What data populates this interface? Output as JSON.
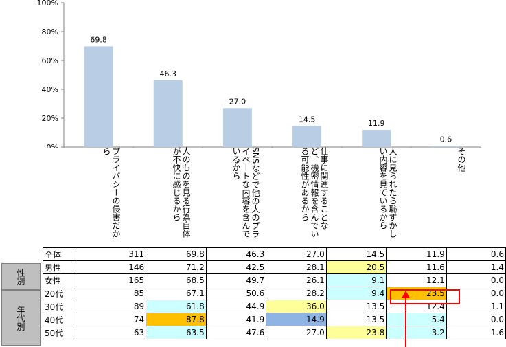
{
  "chart_data": {
    "type": "bar",
    "categories": [
      "プライバシーの侵害だから",
      "人のものを見る行為自体が不快に感じるから",
      "SNSなどで他の人のプライベートな内容を含んでいるから",
      "仕事に関連することなど、機密情報を含んでいる可能性があるから",
      "人に見られたら恥ずかしい内容を見ているから",
      "その他"
    ],
    "values": [
      69.8,
      46.3,
      27.0,
      14.5,
      11.9,
      0.6
    ],
    "value_labels": [
      "69.8",
      "46.3",
      "27.0",
      "14.5",
      "11.9",
      "0.6"
    ],
    "ylim": [
      0,
      100
    ],
    "yticks": [
      "0%",
      "20%",
      "40%",
      "60%",
      "80%",
      "100%"
    ],
    "bar_color": "#b9cde5",
    "grid": false
  },
  "table": {
    "groups": [
      {
        "label": "性別"
      },
      {
        "label": "年代別"
      }
    ],
    "rows": [
      {
        "label": "全体",
        "n": "311",
        "values": [
          "69.8",
          "46.3",
          "27.0",
          "14.5",
          "11.9",
          "0.6"
        ],
        "hl": [
          "",
          "",
          "",
          "",
          "",
          ""
        ]
      },
      {
        "label": "男性",
        "n": "146",
        "values": [
          "71.2",
          "42.5",
          "28.1",
          "20.5",
          "11.6",
          "1.4"
        ],
        "hl": [
          "",
          "",
          "",
          "y",
          "",
          ""
        ]
      },
      {
        "label": "女性",
        "n": "165",
        "values": [
          "68.5",
          "49.7",
          "26.1",
          "9.1",
          "12.1",
          "0.0"
        ],
        "hl": [
          "",
          "",
          "",
          "c",
          "",
          ""
        ]
      },
      {
        "label": "20代",
        "n": "85",
        "values": [
          "67.1",
          "50.6",
          "28.2",
          "9.4",
          "23.5",
          "0.0"
        ],
        "hl": [
          "",
          "",
          "",
          "c",
          "o",
          ""
        ]
      },
      {
        "label": "30代",
        "n": "89",
        "values": [
          "61.8",
          "44.9",
          "36.0",
          "13.5",
          "12.4",
          "1.1"
        ],
        "hl": [
          "c",
          "",
          "y",
          "",
          "",
          ""
        ]
      },
      {
        "label": "40代",
        "n": "74",
        "values": [
          "87.8",
          "41.9",
          "14.9",
          "13.5",
          "5.4",
          "0.0"
        ],
        "hl": [
          "o",
          "",
          "b",
          "",
          "c",
          ""
        ]
      },
      {
        "label": "50代",
        "n": "63",
        "values": [
          "63.5",
          "47.6",
          "27.0",
          "23.8",
          "3.2",
          "1.6"
        ],
        "hl": [
          "c",
          "",
          "",
          "y",
          "c",
          ""
        ]
      }
    ]
  },
  "colors": {
    "yellow": "#ffff99",
    "cyan": "#ccffff",
    "orange": "#ffc000",
    "blue": "#8db4e2",
    "annotation": "#ff0000",
    "group_bg": "#bfbfbf"
  }
}
